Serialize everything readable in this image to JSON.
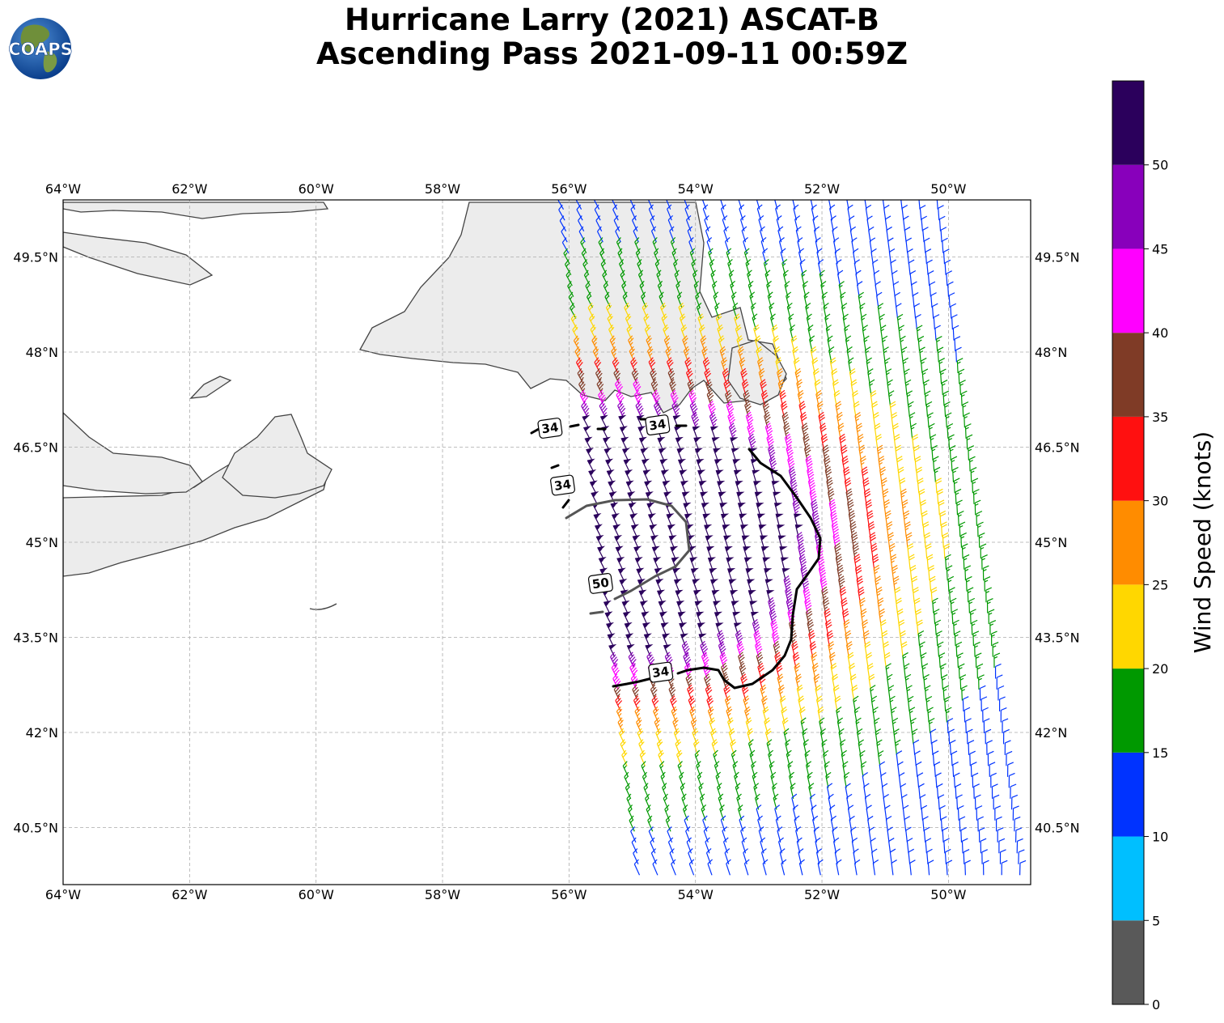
{
  "title": {
    "line1": "Hurricane Larry (2021) ASCAT-B",
    "line2": "Ascending Pass 2021-09-11 00:59Z"
  },
  "logo": {
    "text": "COAPS",
    "icon": "coaps-globe-logo"
  },
  "map": {
    "lon_range": [
      -64.0,
      -48.7
    ],
    "lat_range": [
      39.6,
      50.4
    ],
    "lon_ticks": [
      {
        "value": -64,
        "label": "64°W"
      },
      {
        "value": -62,
        "label": "62°W"
      },
      {
        "value": -60,
        "label": "60°W"
      },
      {
        "value": -58,
        "label": "58°W"
      },
      {
        "value": -56,
        "label": "56°W"
      },
      {
        "value": -54,
        "label": "54°W"
      },
      {
        "value": -52,
        "label": "52°W"
      },
      {
        "value": -50,
        "label": "50°W"
      }
    ],
    "lat_ticks": [
      {
        "value": 49.5,
        "label": "49.5°N"
      },
      {
        "value": 48.0,
        "label": "48°N"
      },
      {
        "value": 46.5,
        "label": "46.5°N"
      },
      {
        "value": 45.0,
        "label": "45°N"
      },
      {
        "value": 43.5,
        "label": "43.5°N"
      },
      {
        "value": 42.0,
        "label": "42°N"
      },
      {
        "value": 40.5,
        "label": "40.5°N"
      }
    ],
    "grid": true,
    "contour_labels": [
      {
        "text": "34",
        "lon": -56.3,
        "lat": 46.8
      },
      {
        "text": "34",
        "lon": -54.6,
        "lat": 46.85
      },
      {
        "text": "34",
        "lon": -56.1,
        "lat": 45.9
      },
      {
        "text": "50",
        "lon": -55.5,
        "lat": 44.35
      },
      {
        "text": "34",
        "lon": -54.55,
        "lat": 42.95
      }
    ]
  },
  "colorbar": {
    "label": "Wind Speed (knots)",
    "levels": [
      0,
      5,
      10,
      15,
      20,
      25,
      30,
      35,
      40,
      45,
      50,
      55
    ],
    "tick_labels": [
      "0",
      "5",
      "10",
      "15",
      "20",
      "25",
      "30",
      "35",
      "40",
      "45",
      "50"
    ],
    "colors": [
      "#595959",
      "#00bfff",
      "#0033ff",
      "#009900",
      "#ffd700",
      "#ff8c00",
      "#ff1010",
      "#7f3b26",
      "#ff00ff",
      "#8800bb",
      "#2b005c"
    ]
  },
  "chart_data": {
    "type": "wind-barb-map",
    "storm": "Hurricane Larry (2021)",
    "instrument": "ASCAT-B",
    "pass": "Ascending",
    "time": "2021-09-11 00:59Z",
    "wind_speed_units": "knots",
    "center_approx": {
      "lon": -55.0,
      "lat": 45.0
    },
    "contours_kt": [
      34,
      50
    ],
    "swath_corners": [
      [
        -56.2,
        50.4
      ],
      [
        -50.0,
        50.4
      ],
      [
        -48.7,
        39.6
      ],
      [
        -55.0,
        39.6
      ]
    ]
  }
}
